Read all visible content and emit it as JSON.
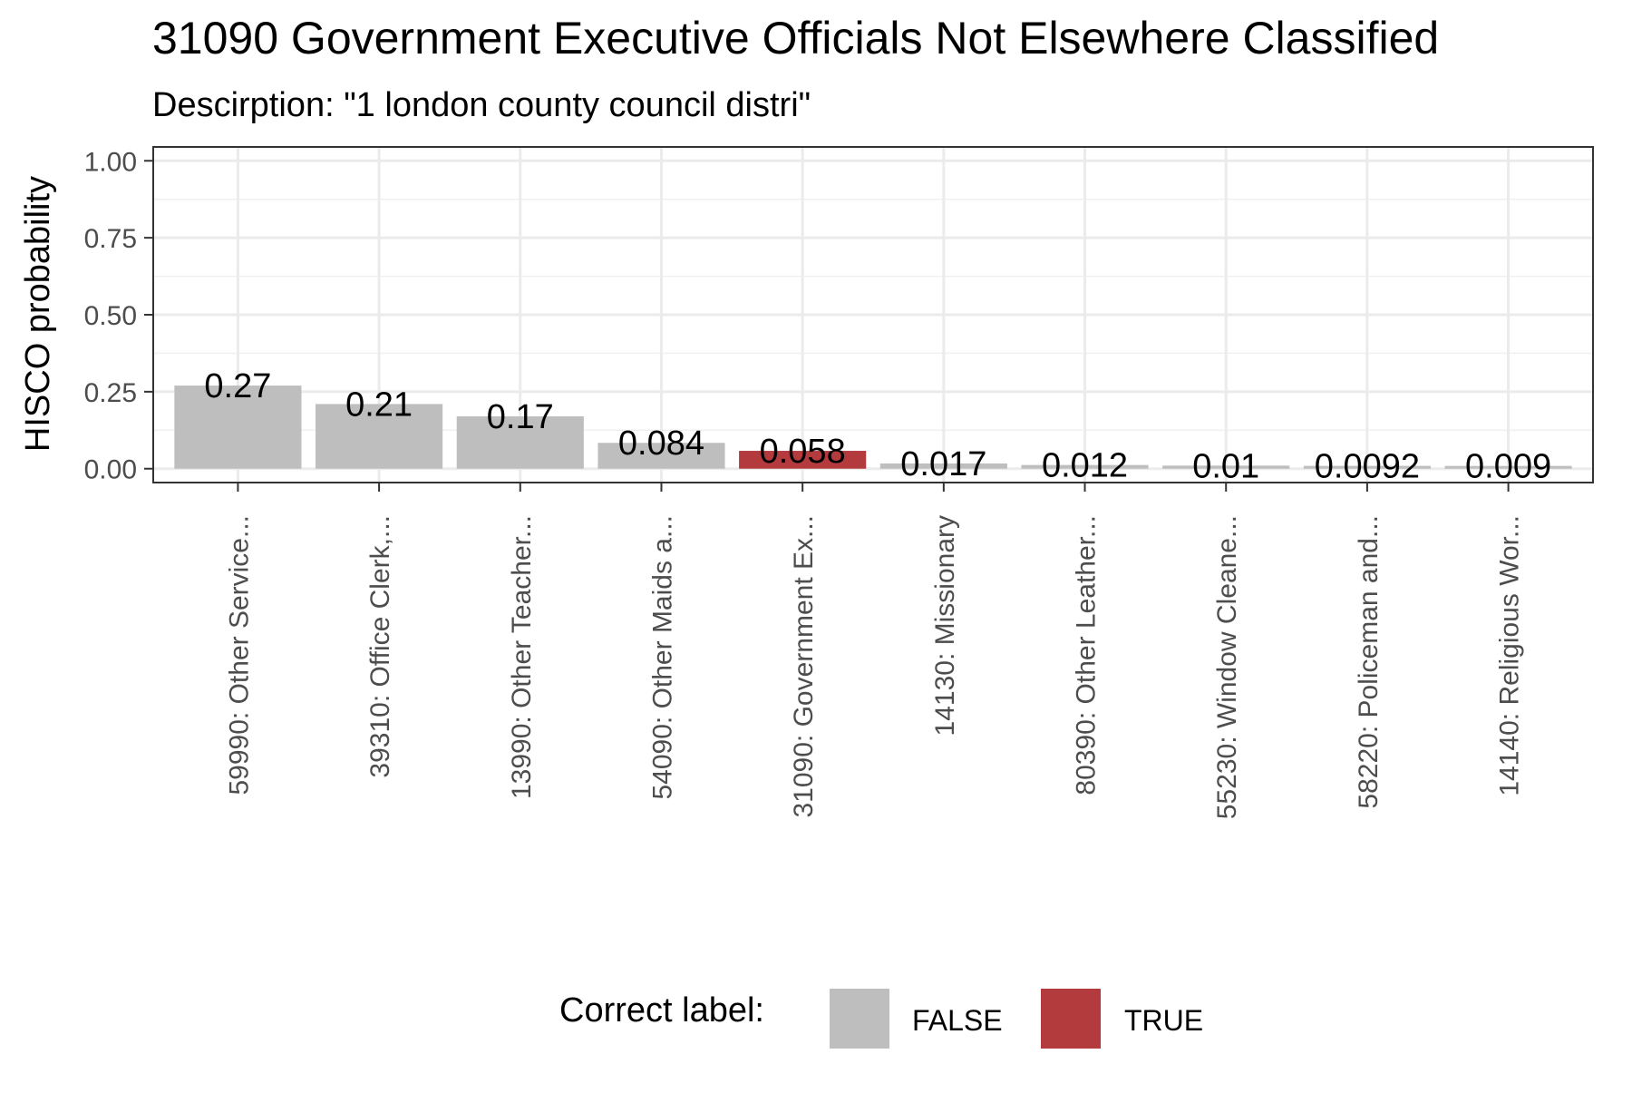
{
  "chart_data": {
    "type": "bar",
    "title": "31090 Government Executive Officials Not Elsewhere Classified",
    "subtitle": "Descirption: \"1 london county council distri\"",
    "xlabel": "",
    "ylabel": "HISCO probability",
    "ylim": [
      -0.045,
      1.045
    ],
    "yticks": [
      "0.00",
      "0.25",
      "0.50",
      "0.75",
      "1.00"
    ],
    "grid": true,
    "categories": [
      "59990: Other Service...",
      "39310: Office Clerk,...",
      "13990: Other Teacher...",
      "54090: Other Maids a...",
      "31090: Government Ex...",
      "14130: Missionary",
      "80390: Other Leather...",
      "55230: Window Cleane...",
      "58220: Policeman and...",
      "14140: Religious Wor..."
    ],
    "values": [
      0.27,
      0.21,
      0.17,
      0.084,
      0.058,
      0.017,
      0.012,
      0.01,
      0.0092,
      0.009
    ],
    "value_labels": [
      "0.27",
      "0.21",
      "0.17",
      "0.084",
      "0.058",
      "0.017",
      "0.012",
      "0.01",
      "0.0092",
      "0.009"
    ],
    "correct": [
      false,
      false,
      false,
      false,
      true,
      false,
      false,
      false,
      false,
      false
    ],
    "legend": {
      "position": "bottom",
      "title": "Correct label:",
      "entries": [
        {
          "label": "FALSE",
          "color": "#bebebe"
        },
        {
          "label": "TRUE",
          "color": "#b33a3d"
        }
      ]
    },
    "colors": {
      "false": "#bebebe",
      "true": "#b33a3d"
    }
  }
}
